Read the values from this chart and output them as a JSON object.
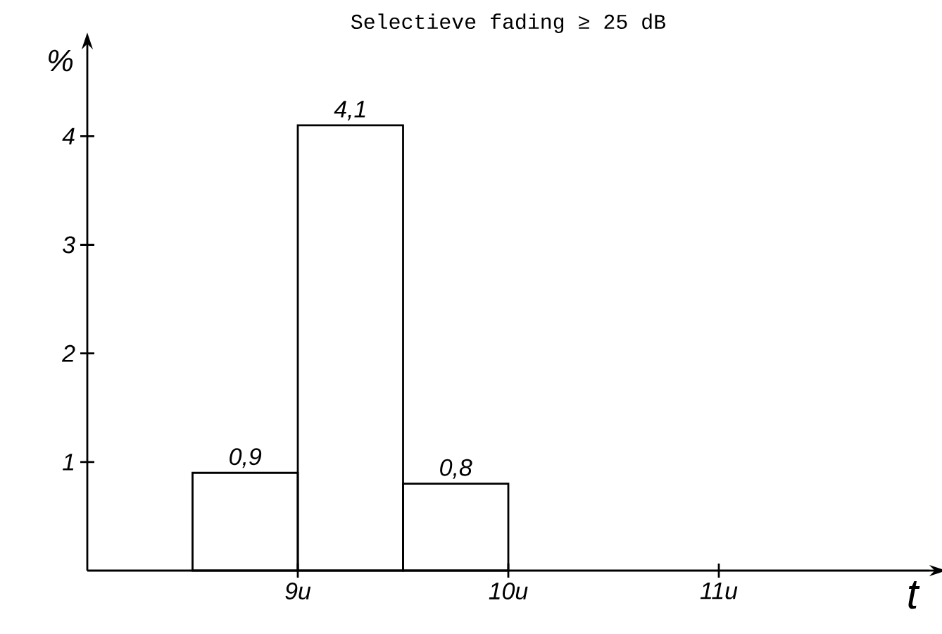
{
  "chart_data": {
    "type": "histogram",
    "title": "Selectieve fading ≥ 25 dB",
    "xlabel": "t",
    "ylabel": "%",
    "bins": [
      8.5,
      9,
      9.5,
      10
    ],
    "values": [
      0.9,
      4.1,
      0.8
    ],
    "value_labels": [
      "0,9",
      "4,1",
      "0,8"
    ],
    "color": "#000000",
    "xlim": [
      8,
      12
    ],
    "ylim": [
      0,
      4.8
    ],
    "xticks": [
      {
        "value": 9,
        "label": "9u"
      },
      {
        "value": 10,
        "label": "10u"
      },
      {
        "value": 11,
        "label": "11u"
      }
    ],
    "yticks": [
      1,
      2,
      3,
      4
    ]
  }
}
